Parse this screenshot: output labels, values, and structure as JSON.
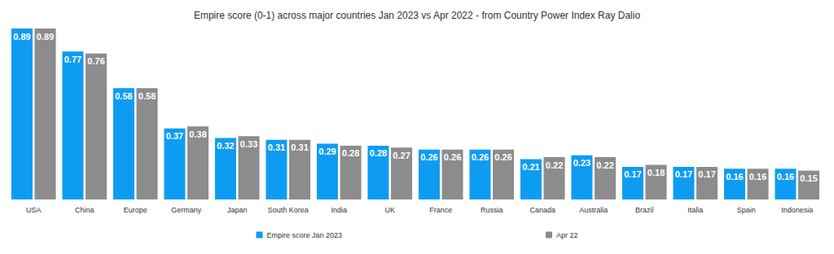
{
  "chart_data": {
    "type": "bar",
    "title": "Empire score (0-1) across major countries Jan 2023 vs Apr 2022 - from Country Power Index Ray Dalio",
    "categories": [
      "USA",
      "China",
      "Europe",
      "Germany",
      "Japan",
      "South Korea",
      "India",
      "UK",
      "France",
      "Russia",
      "Canada",
      "Australia",
      "Brazil",
      "Italia",
      "Spain",
      "Indonesia"
    ],
    "series": [
      {
        "name": "Empire score Jan 2023",
        "color": "#0e9cf3",
        "values": [
          0.89,
          0.77,
          0.58,
          0.37,
          0.32,
          0.31,
          0.29,
          0.28,
          0.26,
          0.26,
          0.21,
          0.23,
          0.17,
          0.17,
          0.16,
          0.16
        ]
      },
      {
        "name": "Apr 22",
        "color": "#8c8c8c",
        "values": [
          0.89,
          0.76,
          0.58,
          0.38,
          0.33,
          0.31,
          0.28,
          0.27,
          0.26,
          0.26,
          0.22,
          0.22,
          0.18,
          0.17,
          0.16,
          0.15
        ]
      }
    ],
    "ylim": [
      0,
      0.89
    ],
    "grid": false,
    "legend": "bottom",
    "data_labels": true,
    "tick_labels": "x"
  }
}
